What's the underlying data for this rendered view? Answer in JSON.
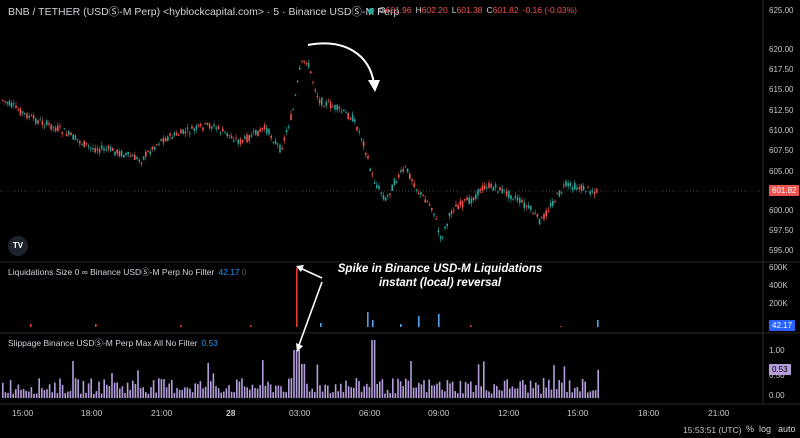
{
  "header": {
    "title": "BNB / TETHER (USDⓈ-M Perp) <hyblockcapital.com> · 5 · Binance USDⓈ-M Perp",
    "ohlc": [
      {
        "k": "O",
        "v": "601.96"
      },
      {
        "k": "H",
        "v": "602.20"
      },
      {
        "k": "L",
        "v": "601.38"
      },
      {
        "k": "C",
        "v": "601.82"
      }
    ],
    "change": "-0.16 (-0.03%)"
  },
  "price_axis": {
    "ticks": [
      "625.00",
      "620.00",
      "617.50",
      "615.00",
      "612.50",
      "610.00",
      "607.50",
      "605.00",
      "602.50",
      "600.00",
      "597.50",
      "595.00"
    ],
    "last_price": "601.82"
  },
  "liq_pane": {
    "label": "Liquidations Size 0 ∞ Binance USDⓈ-M Perp No Filter",
    "value": "42.17",
    "value2": "0",
    "ticks": [
      "600K",
      "400K",
      "200K"
    ],
    "last_value": "42.17"
  },
  "slip_pane": {
    "label": "Slippage Binance USDⓈ-M Perp Max All No Filter",
    "value": "0.53",
    "ticks": [
      "1.00",
      "0.50",
      "0.00"
    ],
    "last_value": "0.53"
  },
  "time_axis": {
    "labels": [
      "15:00",
      "18:00",
      "21:00",
      "28",
      "03:00",
      "06:00",
      "09:00",
      "12:00",
      "15:00",
      "18:00",
      "21:00"
    ],
    "clock": "15:53:51 (UTC)",
    "percent_btn": "%",
    "log_btn": "log",
    "auto_btn": "auto"
  },
  "annotation": {
    "line1": "Spike in Binance USD-M Liquidations",
    "line2": "instant (local) reversal"
  },
  "colors": {
    "up": "#26a69a",
    "down": "#ef5350",
    "liq_blue": "#4fa3e8",
    "liq_red": "#e53935",
    "slippage": "#b39ddb"
  },
  "logo": "TV"
}
